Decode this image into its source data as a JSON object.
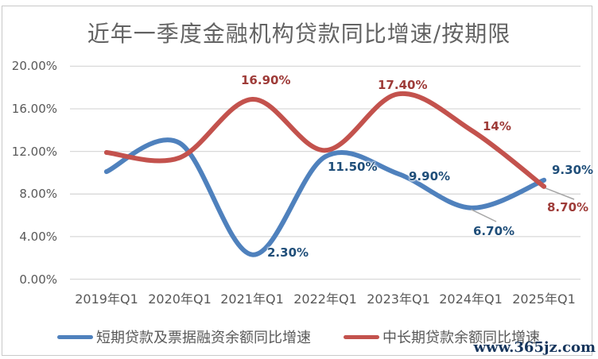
{
  "title": "近年一季度金融机构贷款同比增速/按期限",
  "watermark": "www.365jz.com",
  "colors": {
    "short_term_line": "#4F81BD",
    "short_term_label": "#1F4E79",
    "medium_long_line": "#C3524D",
    "medium_long_label": "#9E3B38",
    "axis_text": "#595959",
    "gridline": "#D9D9D9",
    "border": "#C9C9C9",
    "leader_line": "#A6A6A6",
    "watermark_text": "#17365D"
  },
  "chart_data": {
    "type": "line",
    "title": "近年一季度金融机构贷款同比增速/按期限",
    "categories": [
      "2019年Q1",
      "2020年Q1",
      "2021年Q1",
      "2022年Q1",
      "2023年Q1",
      "2024年Q1",
      "2025年Q1"
    ],
    "yticks": [
      "0.00%",
      "4.00%",
      "8.00%",
      "12.00%",
      "16.00%",
      "20.00%"
    ],
    "ylim": [
      0,
      20
    ],
    "grid": true,
    "smooth_lines": true,
    "legend_position": "bottom",
    "series": [
      {
        "name": "短期贷款及票据融资余额同比增速",
        "color": "#4F81BD",
        "label_color": "#1F4E79",
        "values": [
          10.1,
          12.8,
          2.3,
          11.5,
          9.9,
          6.7,
          9.3
        ],
        "point_labels": [
          "",
          "",
          "2.30%",
          "11.50%",
          "9.90%",
          "6.70%",
          "9.30%"
        ]
      },
      {
        "name": "中长期贷款余额同比增速",
        "color": "#C3524D",
        "label_color": "#9E3B38",
        "values": [
          11.9,
          11.4,
          16.9,
          12.1,
          17.4,
          14,
          8.7
        ],
        "point_labels": [
          "",
          "",
          "16.90%",
          "",
          "17.40%",
          "14%",
          "8.70%"
        ]
      }
    ]
  }
}
